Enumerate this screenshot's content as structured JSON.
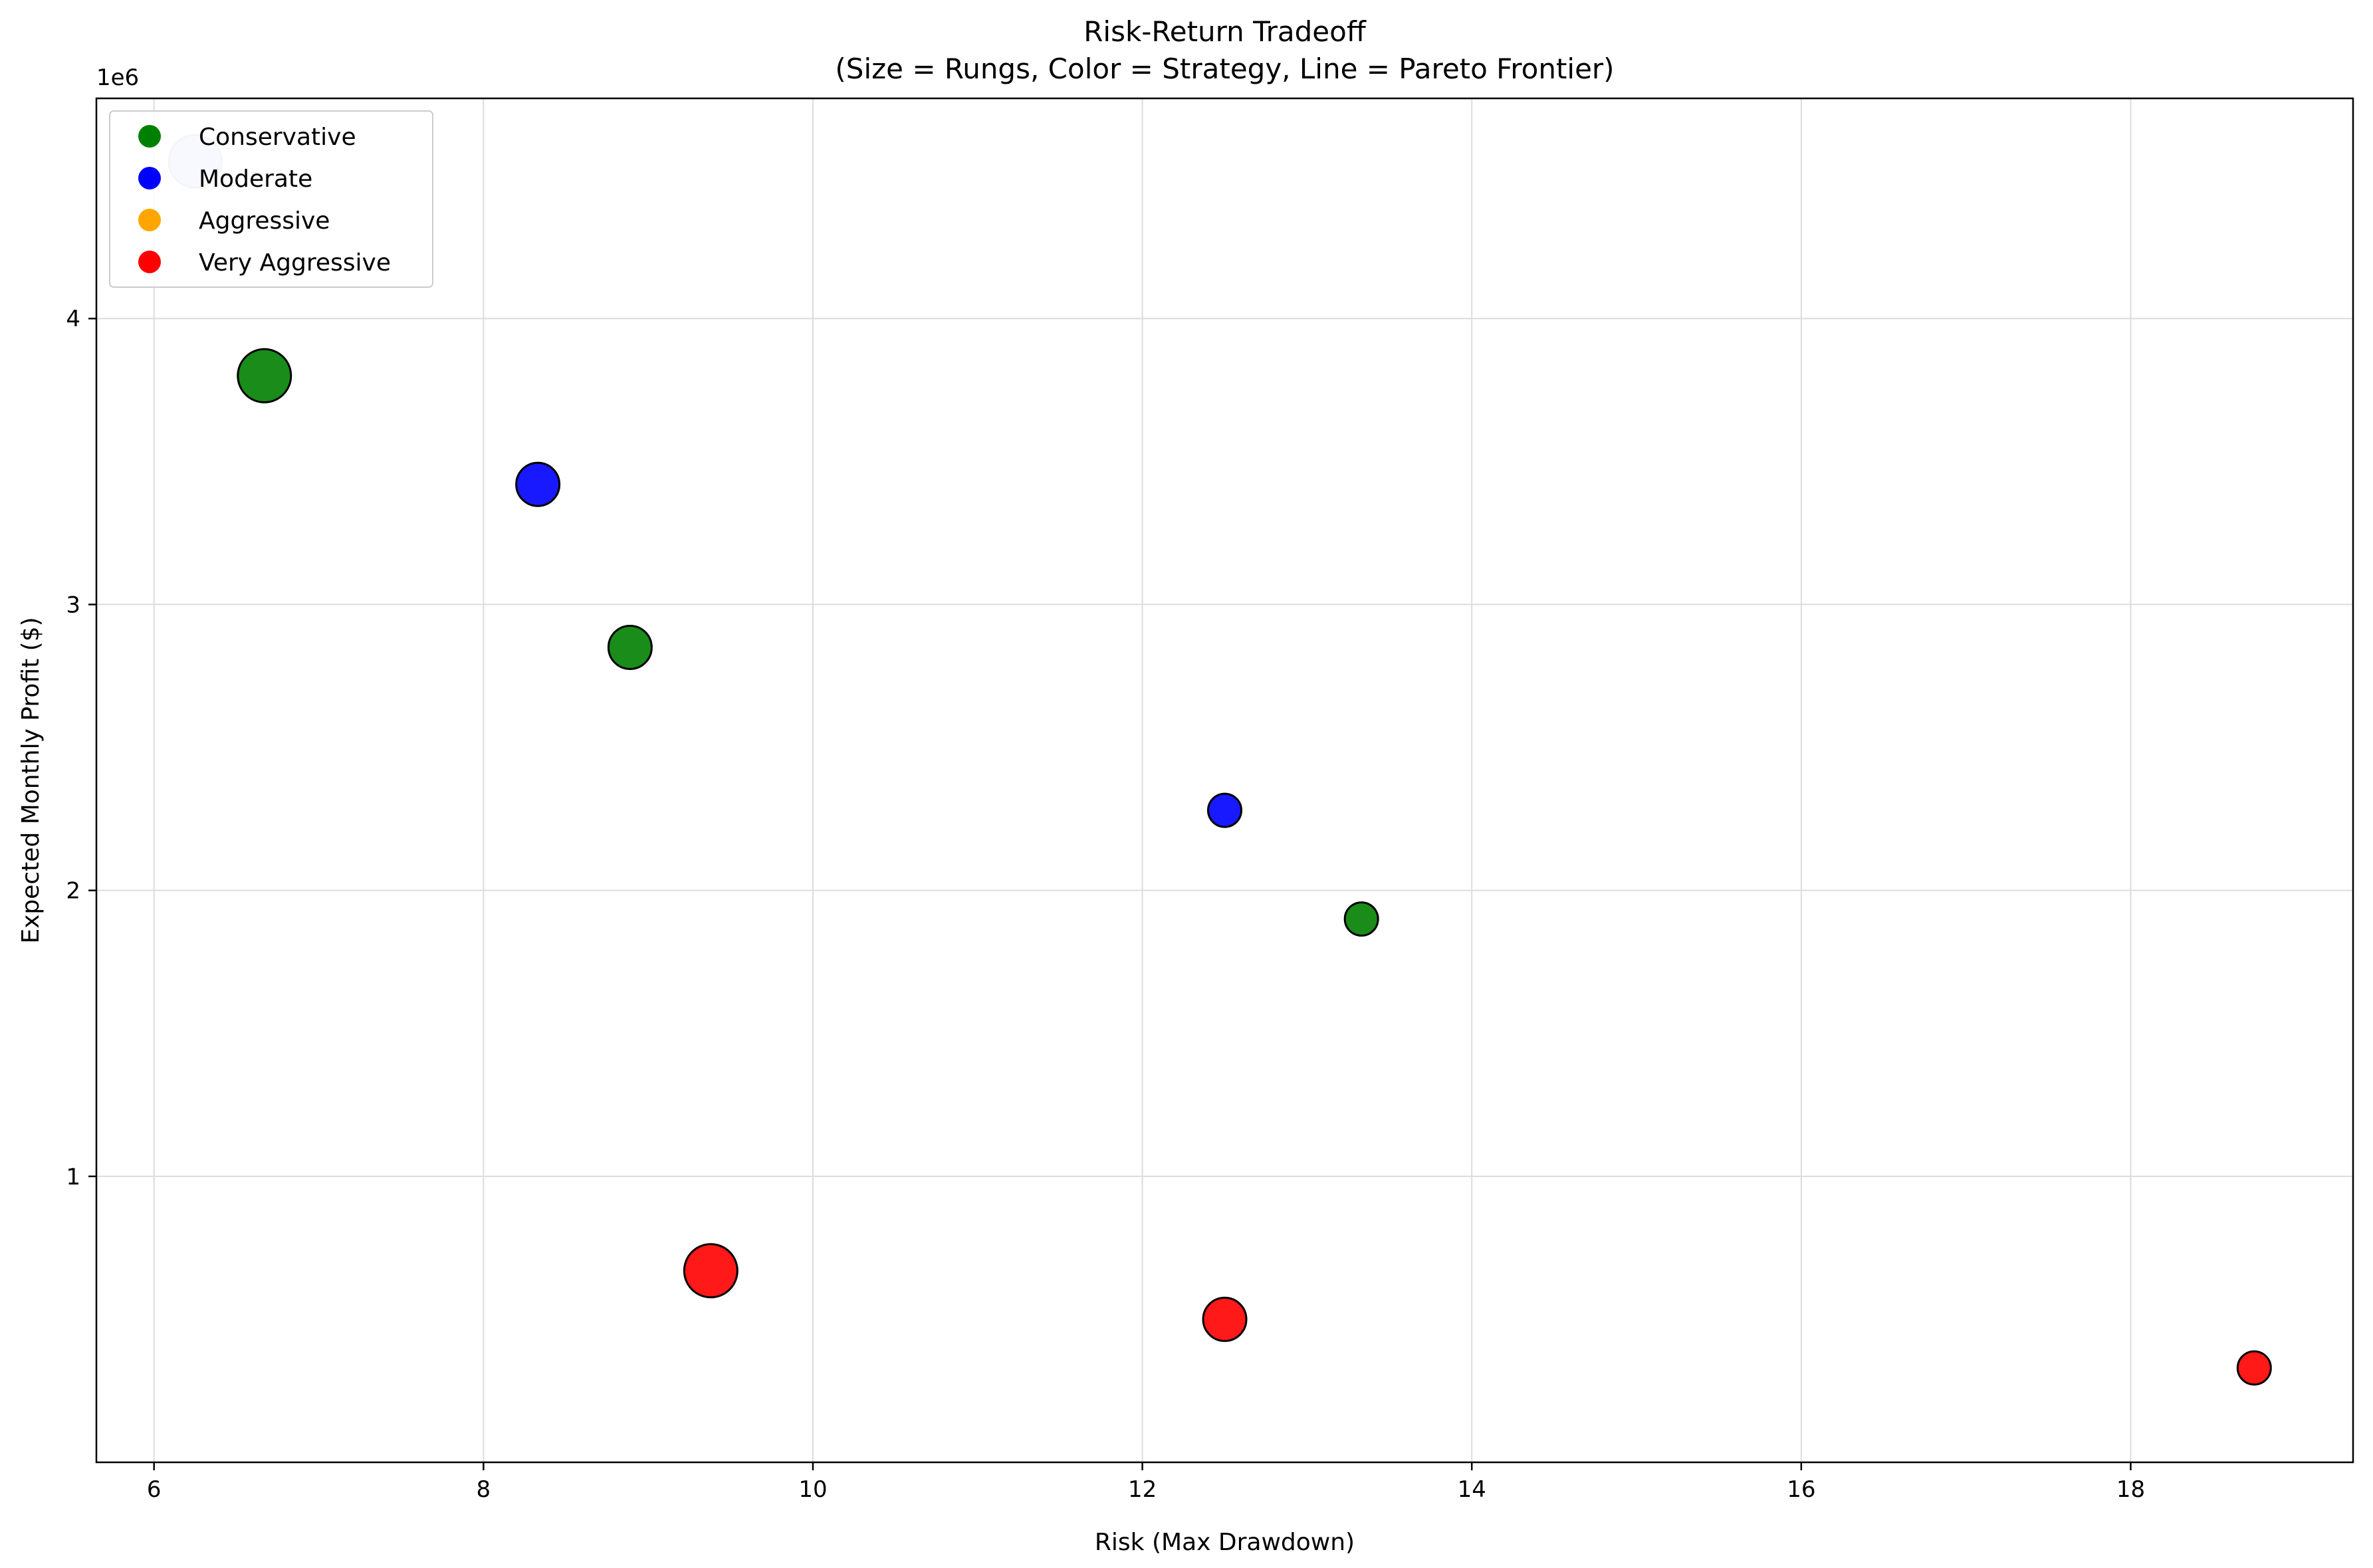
{
  "chart_data": {
    "type": "scatter",
    "title": "Risk-Return Tradeoff",
    "subtitle": "(Size = Rungs, Color = Strategy, Line = Pareto Frontier)",
    "xlabel": "Risk (Max Drawdown)",
    "ylabel": "Expected Monthly Profit ($)",
    "y_offset_label": "1e6",
    "xlim": [
      5.65,
      19.35
    ],
    "ylim": [
      0.0,
      4.77
    ],
    "y_scale_factor": 1000000,
    "xticks": [
      6,
      8,
      10,
      12,
      14,
      16,
      18
    ],
    "yticks": [
      1,
      2,
      3,
      4
    ],
    "grid": true,
    "legend_position": "upper-left",
    "series": [
      {
        "name": "Conservative",
        "color": "#008000",
        "points": [
          {
            "x": 6.67,
            "y": 3.8,
            "rungs": 4
          },
          {
            "x": 8.89,
            "y": 2.85,
            "rungs": 3
          },
          {
            "x": 13.33,
            "y": 1.9,
            "rungs": 2
          }
        ]
      },
      {
        "name": "Moderate",
        "color": "#0000ff",
        "points": [
          {
            "x": 6.25,
            "y": 4.55,
            "rungs": 4,
            "faded": true
          },
          {
            "x": 8.33,
            "y": 3.42,
            "rungs": 3
          },
          {
            "x": 12.5,
            "y": 2.28,
            "rungs": 2
          }
        ]
      },
      {
        "name": "Aggressive",
        "color": "#ffa500",
        "points": []
      },
      {
        "name": "Very Aggressive",
        "color": "#ff0000",
        "points": [
          {
            "x": 9.38,
            "y": 0.67,
            "rungs": 4
          },
          {
            "x": 12.5,
            "y": 0.5,
            "rungs": 3
          },
          {
            "x": 18.75,
            "y": 0.33,
            "rungs": 2
          }
        ]
      }
    ]
  }
}
